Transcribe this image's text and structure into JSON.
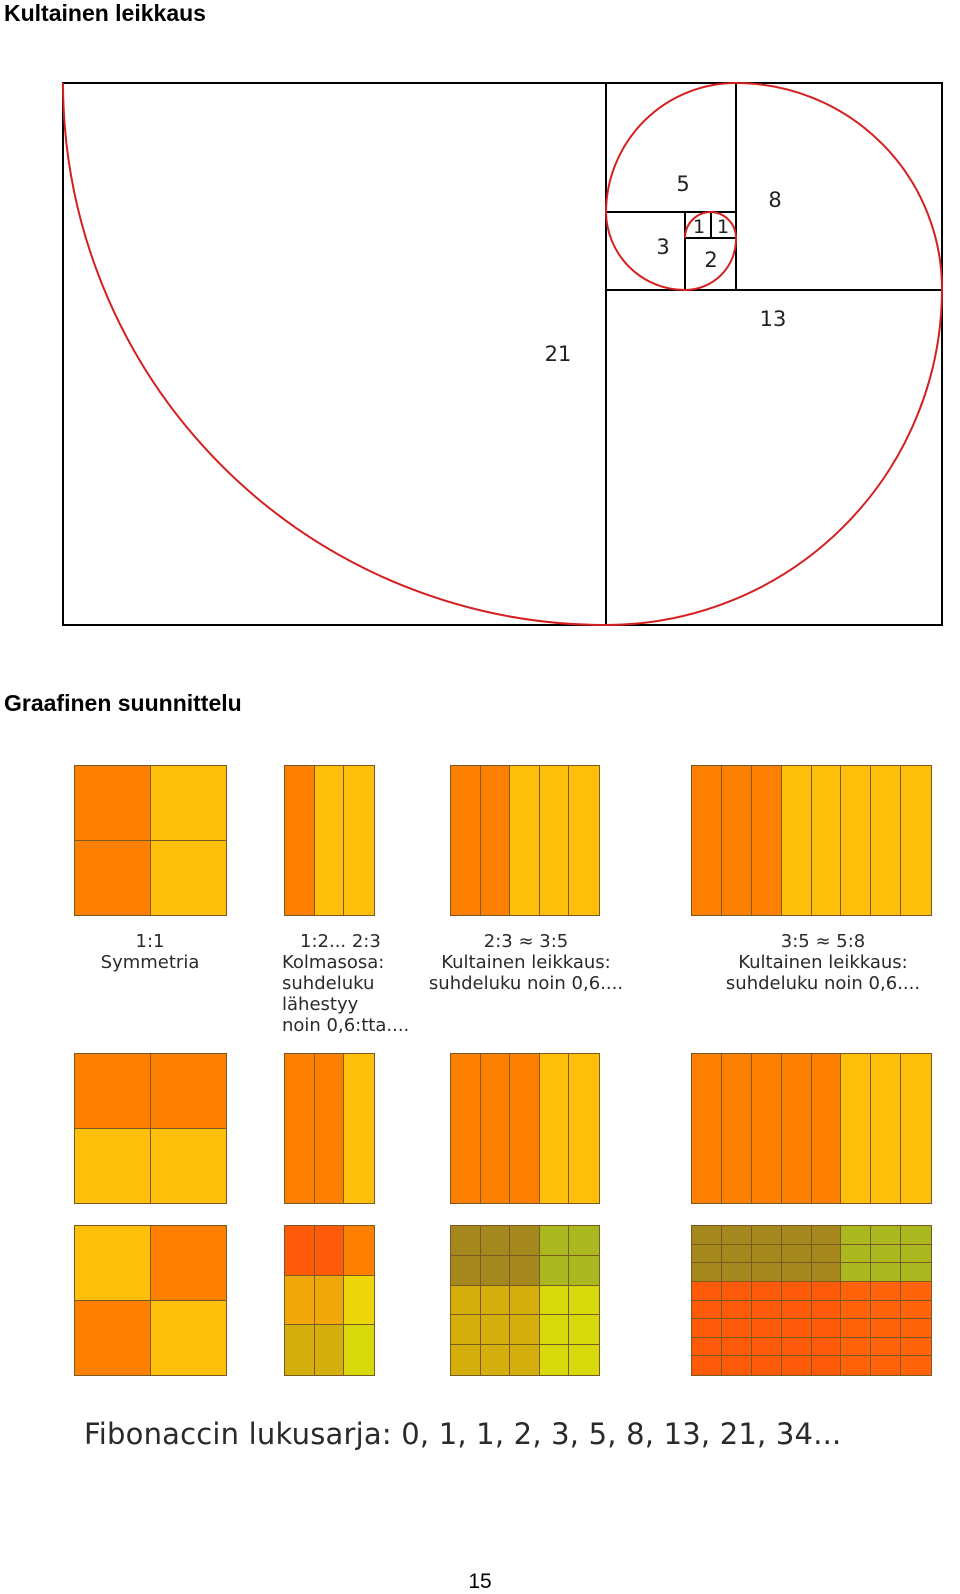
{
  "headings": {
    "golden_ratio": "Kultainen leikkaus",
    "graphic_design": "Graafinen suunnittelu"
  },
  "spiral": {
    "squares": [
      {
        "label": "21"
      },
      {
        "label": "13"
      },
      {
        "label": "8"
      },
      {
        "label": "5"
      },
      {
        "label": "3"
      },
      {
        "label": "2"
      },
      {
        "label": "1"
      },
      {
        "label": "1"
      }
    ],
    "colors": {
      "spiral": "#d42020",
      "lines": "#000000"
    }
  },
  "captions": {
    "c1": [
      "1:1",
      "Symmetria"
    ],
    "c2": [
      "1:2... 2:3",
      "Kolmasosa:",
      "suhdeluku",
      "lähestyy",
      "noin 0,6:tta...."
    ],
    "c3": [
      "2:3  ≈  3:5",
      "Kultainen leikkaus:",
      "suhdeluku noin 0,6...."
    ],
    "c4": [
      "3:5  ≈  5:8",
      "Kultainen leikkaus:",
      "suhdeluku noin 0,6...."
    ]
  },
  "colors": {
    "orange": "#fd7f00",
    "yellow": "#febf0b",
    "olive": "#a4881e",
    "olive_green": "#a9b81e",
    "mustard": "#d4ae0a",
    "lime": "#d7d90a",
    "red_orange": "#ff5a0a",
    "dark_orange": "#ff640a",
    "amber": "#f0a80a",
    "lemon": "#ecd80a"
  },
  "fibonacci": "Fibonaccin lukusarja: 0,   1,   1,   2,   3,   5,   8,   13,   21,   34...",
  "page_number": "15"
}
